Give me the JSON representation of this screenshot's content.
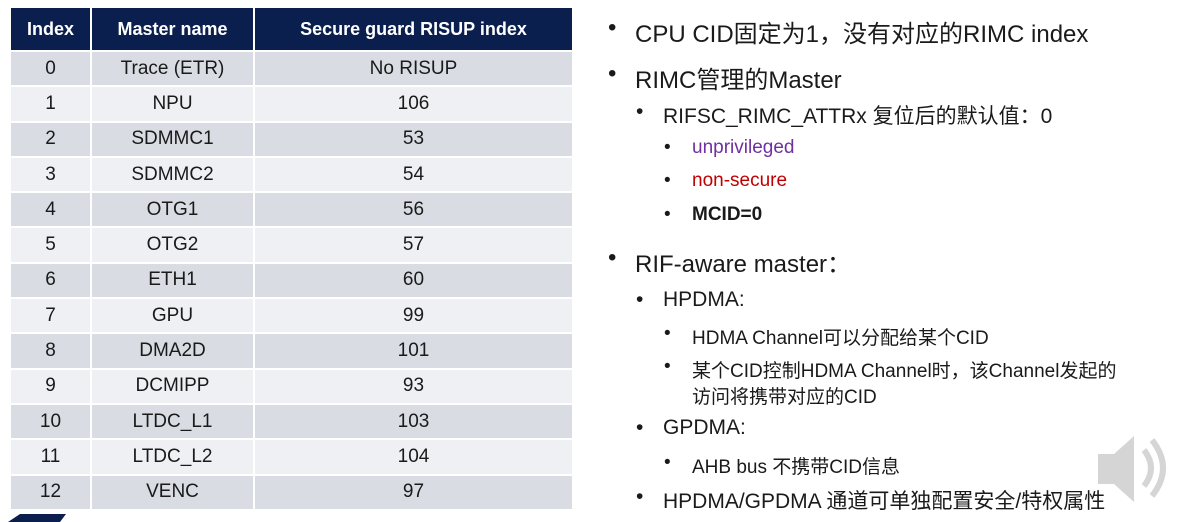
{
  "table": {
    "headers": [
      "Index",
      "Master name",
      "Secure guard RISUP index"
    ],
    "rows": [
      [
        "0",
        "Trace (ETR)",
        "No RISUP"
      ],
      [
        "1",
        "NPU",
        "106"
      ],
      [
        "2",
        "SDMMC1",
        "53"
      ],
      [
        "3",
        "SDMMC2",
        "54"
      ],
      [
        "4",
        "OTG1",
        "56"
      ],
      [
        "5",
        "OTG2",
        "57"
      ],
      [
        "6",
        "ETH1",
        "60"
      ],
      [
        "7",
        "GPU",
        "99"
      ],
      [
        "8",
        "DMA2D",
        "101"
      ],
      [
        "9",
        "DCMIPP",
        "93"
      ],
      [
        "10",
        "LTDC_L1",
        "103"
      ],
      [
        "11",
        "LTDC_L2",
        "104"
      ],
      [
        "12",
        "VENC",
        "97"
      ]
    ]
  },
  "bullets": {
    "cpu_cid": "CPU CID固定为1，没有对应的RIMC index",
    "rimc_master": "RIMC管理的Master",
    "rifsc_default": "RIFSC_RIMC_ATTRx 复位后的默认值：0",
    "unprivileged": "unprivileged",
    "non_secure": "non-secure",
    "mcid": "MCID=0",
    "rif_aware": "RIF-aware master：",
    "hpdma": "HPDMA:",
    "hdma_channel_assign": "HDMA Channel可以分配给某个CID",
    "hdma_channel_access_line1": "某个CID控制HDMA Channel时，该Channel发起的",
    "hdma_channel_access_line2": "访问将携带对应的CID",
    "gpdma": "GPDMA:",
    "ahb_bus": "AHB bus 不携带CID信息",
    "hpdma_gpdma": "HPDMA/GPDMA 通道可单独配置安全/特权属性"
  },
  "colors": {
    "header_bg": "#0b1f4f",
    "row_odd": "#d9dce3",
    "row_even": "#eef0f4",
    "purple": "#7030a0",
    "red": "#c00000"
  },
  "icons": {
    "speaker": "speaker-icon"
  }
}
